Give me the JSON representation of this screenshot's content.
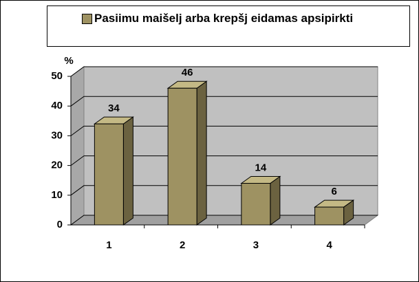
{
  "chart_data": {
    "type": "bar",
    "y_label": "%",
    "categories": [
      "1",
      "2",
      "3",
      "4"
    ],
    "series": [
      {
        "name": "Pasiimu maišelj arba krepšj eidamas apsipirkti",
        "color": "#9e9262",
        "values": [
          34,
          46,
          14,
          6
        ]
      }
    ],
    "ylim": [
      0,
      50
    ],
    "yticks": [
      0,
      10,
      20,
      30,
      40,
      50
    ],
    "grid": true
  }
}
